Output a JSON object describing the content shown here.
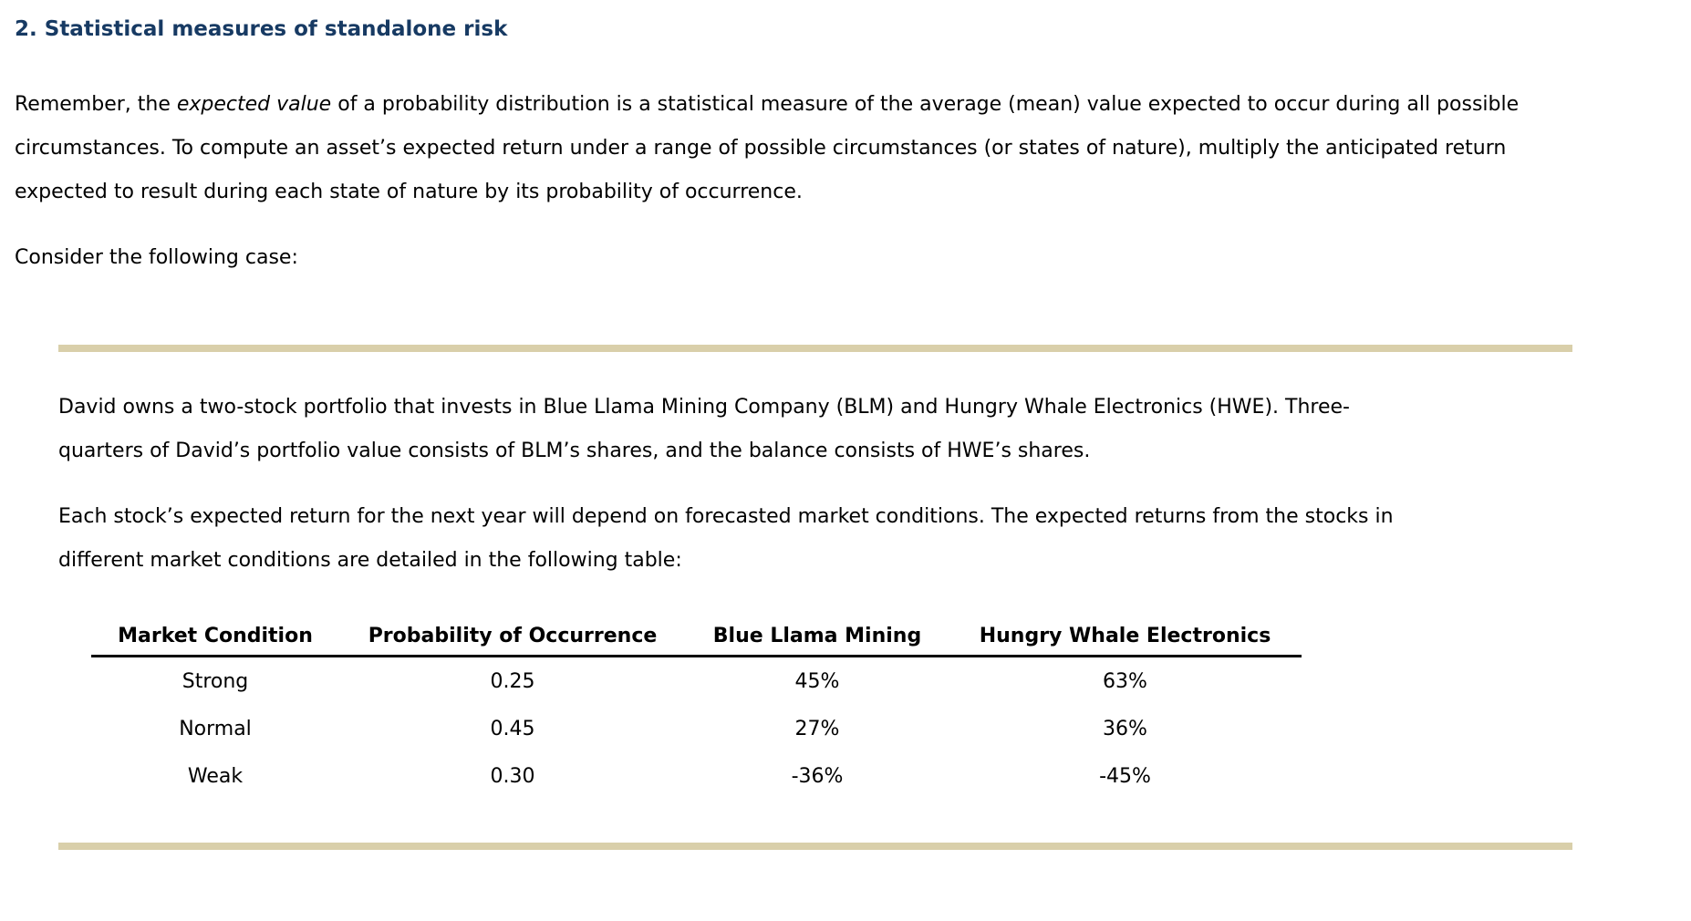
{
  "section": {
    "title": "2. Statistical measures of standalone risk"
  },
  "intro": {
    "line1_before": "Remember, the ",
    "line1_italic": "expected value",
    "line1_after": " of a probability distribution is a statistical measure of the average (mean) value expected to occur during all possible",
    "line2": "circumstances. To compute an asset’s expected return under a range of possible circumstances (or states of nature), multiply the anticipated return",
    "line3": "expected to result during each state of nature by its probability of occurrence.",
    "consider": "Consider the following case:"
  },
  "case": {
    "para1": [
      "David owns a two-stock portfolio that invests in Blue Llama Mining Company (BLM) and Hungry Whale Electronics (HWE). Three-",
      "quarters of David’s portfolio value consists of BLM’s shares, and the balance consists of HWE’s shares."
    ],
    "para2": [
      "Each stock’s expected return for the next year will depend on forecasted market conditions. The expected returns from the stocks in",
      "different market conditions are detailed in the following table:"
    ]
  },
  "table": {
    "headers": [
      "Market Condition",
      "Probability of Occurrence",
      "Blue Llama Mining",
      "Hungry Whale Electronics"
    ],
    "rows": [
      [
        "Strong",
        "0.25",
        "45%",
        "63%"
      ],
      [
        "Normal",
        "0.45",
        "27%",
        "36%"
      ],
      [
        "Weak",
        "0.30",
        "-36%",
        "-45%"
      ]
    ]
  },
  "colors": {
    "title": "#173a63",
    "rule": "#d9cfaa",
    "text": "#000000"
  }
}
